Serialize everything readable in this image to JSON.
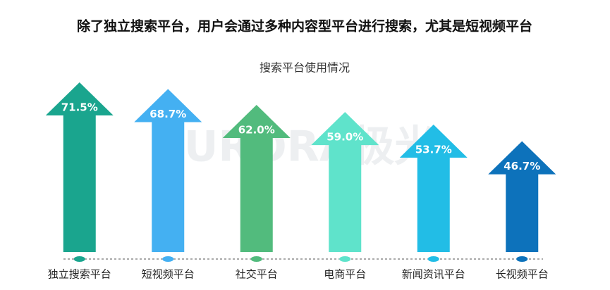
{
  "chart_data": {
    "type": "arrow-bar",
    "title": "除了独立搜索平台，用户会通过多种内容型平台进行搜索，尤其是短视频平台",
    "subtitle": "搜索平台使用情况",
    "watermark": "URORA极光",
    "categories": [
      "独立搜索平台",
      "短视频平台",
      "社交平台",
      "电商平台",
      "新闻资讯平台",
      "长视频平台"
    ],
    "values": [
      71.5,
      68.7,
      62.0,
      59.0,
      53.7,
      46.7
    ],
    "value_labels": [
      "71.5%",
      "68.7%",
      "62.0%",
      "59.0%",
      "53.7%",
      "46.7%"
    ],
    "colors": [
      "#1aa58e",
      "#44b0f2",
      "#52bb7d",
      "#5fe3cb",
      "#22bde6",
      "#0d72bb"
    ]
  }
}
